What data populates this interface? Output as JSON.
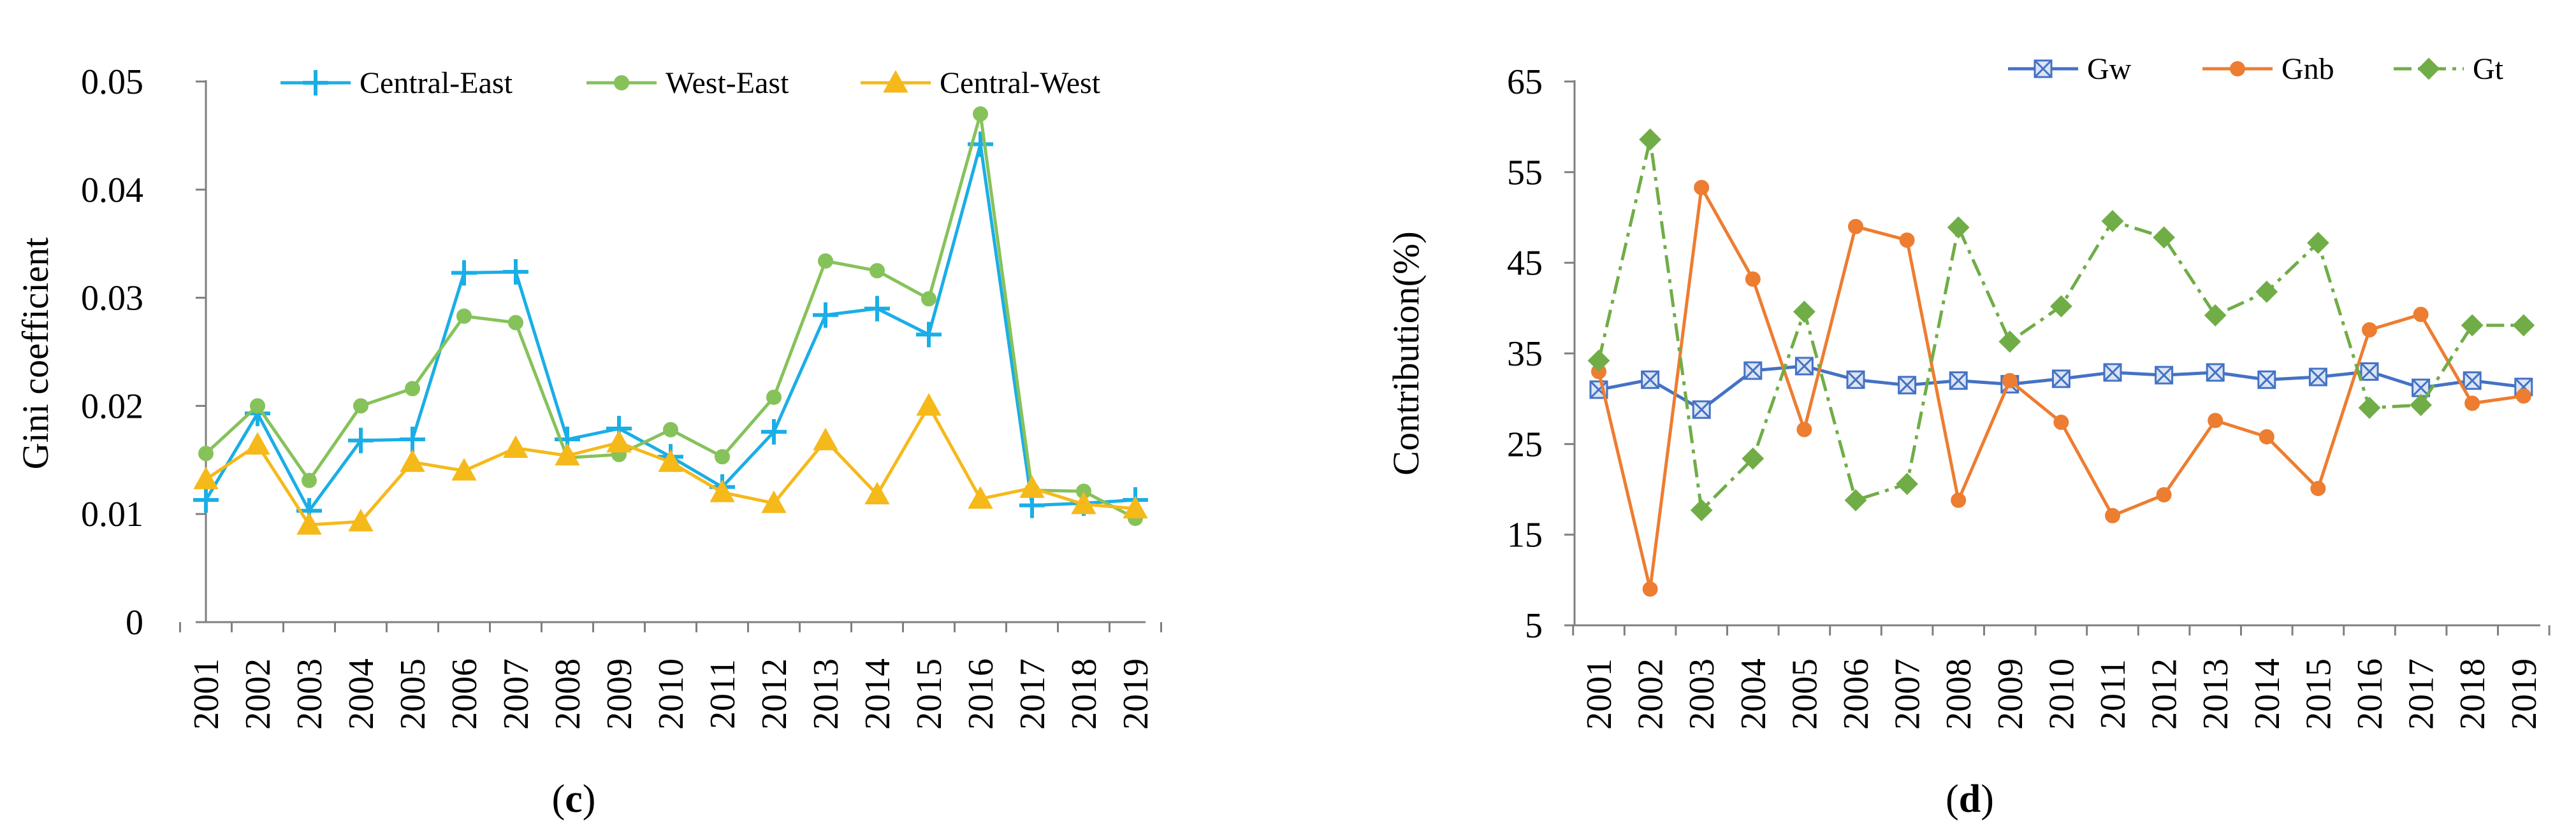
{
  "chart_data": [
    {
      "id": "c",
      "type": "line",
      "caption": {
        "open": "(",
        "letter": "c",
        "close": ")"
      },
      "ylabel": "Gini coefficient",
      "xlabel": "",
      "ylim": [
        0,
        0.05
      ],
      "yticks": [
        0,
        0.01,
        0.02,
        0.03,
        0.04,
        0.05
      ],
      "ytick_labels": [
        "0",
        "0.01",
        "0.02",
        "0.03",
        "0.04",
        "0.05"
      ],
      "categories": [
        "2001",
        "2002",
        "2003",
        "2004",
        "2005",
        "2006",
        "2007",
        "2008",
        "2009",
        "2010",
        "2011",
        "2012",
        "2013",
        "2014",
        "2015",
        "2016",
        "2017",
        "2018",
        "2019"
      ],
      "series": [
        {
          "name": "Central-East",
          "color": "#1aaee6",
          "marker": "plus",
          "dash": "solid",
          "values": [
            0.0113,
            0.0193,
            0.0103,
            0.0168,
            0.0169,
            0.0323,
            0.0324,
            0.0169,
            0.0179,
            0.0153,
            0.0125,
            0.0176,
            0.0284,
            0.029,
            0.0266,
            0.0442,
            0.0108,
            0.011,
            0.0113
          ]
        },
        {
          "name": "West-East",
          "color": "#86c25a",
          "marker": "circle",
          "dash": "solid",
          "values": [
            0.0156,
            0.02,
            0.0131,
            0.02,
            0.0216,
            0.0283,
            0.0277,
            0.0152,
            0.0155,
            0.0178,
            0.0153,
            0.0208,
            0.0334,
            0.0325,
            0.0299,
            0.047,
            0.0122,
            0.0121,
            0.0096
          ]
        },
        {
          "name": "Central-West",
          "color": "#f5b91a",
          "marker": "triangle",
          "dash": "solid",
          "values": [
            0.0132,
            0.0164,
            0.009,
            0.0093,
            0.0148,
            0.014,
            0.0161,
            0.0154,
            0.0166,
            0.0148,
            0.012,
            0.011,
            0.0168,
            0.0118,
            0.02,
            0.0114,
            0.0124,
            0.0109,
            0.0105
          ]
        }
      ],
      "legend": "top"
    },
    {
      "id": "d",
      "type": "line",
      "caption": {
        "open": "(",
        "letter": "d",
        "close": ")"
      },
      "ylabel": "Contribution(%)",
      "xlabel": "",
      "ylim": [
        5,
        65
      ],
      "yticks": [
        5,
        15,
        25,
        35,
        45,
        55,
        65
      ],
      "ytick_labels": [
        "5",
        "15",
        "25",
        "35",
        "45",
        "55",
        "65"
      ],
      "categories": [
        "2001",
        "2002",
        "2003",
        "2004",
        "2005",
        "2006",
        "2007",
        "2008",
        "2009",
        "2010",
        "2011",
        "2012",
        "2013",
        "2014",
        "2015",
        "2016",
        "2017",
        "2018",
        "2019"
      ],
      "series": [
        {
          "name": "Gw",
          "color": "#4472c4",
          "marker": "boxx",
          "dash": "solid",
          "values": [
            31.0,
            32.1,
            28.8,
            33.1,
            33.6,
            32.1,
            31.5,
            32.0,
            31.6,
            32.2,
            32.9,
            32.6,
            32.9,
            32.1,
            32.4,
            33.0,
            31.2,
            32.0,
            31.3
          ]
        },
        {
          "name": "Gnb",
          "color": "#ed7d31",
          "marker": "circle",
          "dash": "solid",
          "values": [
            33.0,
            9.0,
            53.3,
            43.2,
            26.6,
            49.0,
            47.5,
            18.8,
            32.0,
            27.4,
            17.1,
            19.4,
            27.6,
            25.8,
            20.1,
            37.6,
            39.3,
            29.5,
            30.3
          ]
        },
        {
          "name": "Gt",
          "color": "#70ad47",
          "marker": "diamond",
          "dash": "dashdot",
          "values": [
            34.2,
            58.6,
            17.7,
            23.4,
            39.6,
            18.8,
            20.6,
            48.9,
            36.3,
            40.2,
            49.6,
            47.8,
            39.2,
            41.8,
            47.2,
            29.0,
            29.3,
            38.1,
            38.1
          ]
        }
      ],
      "legend": "top"
    }
  ]
}
